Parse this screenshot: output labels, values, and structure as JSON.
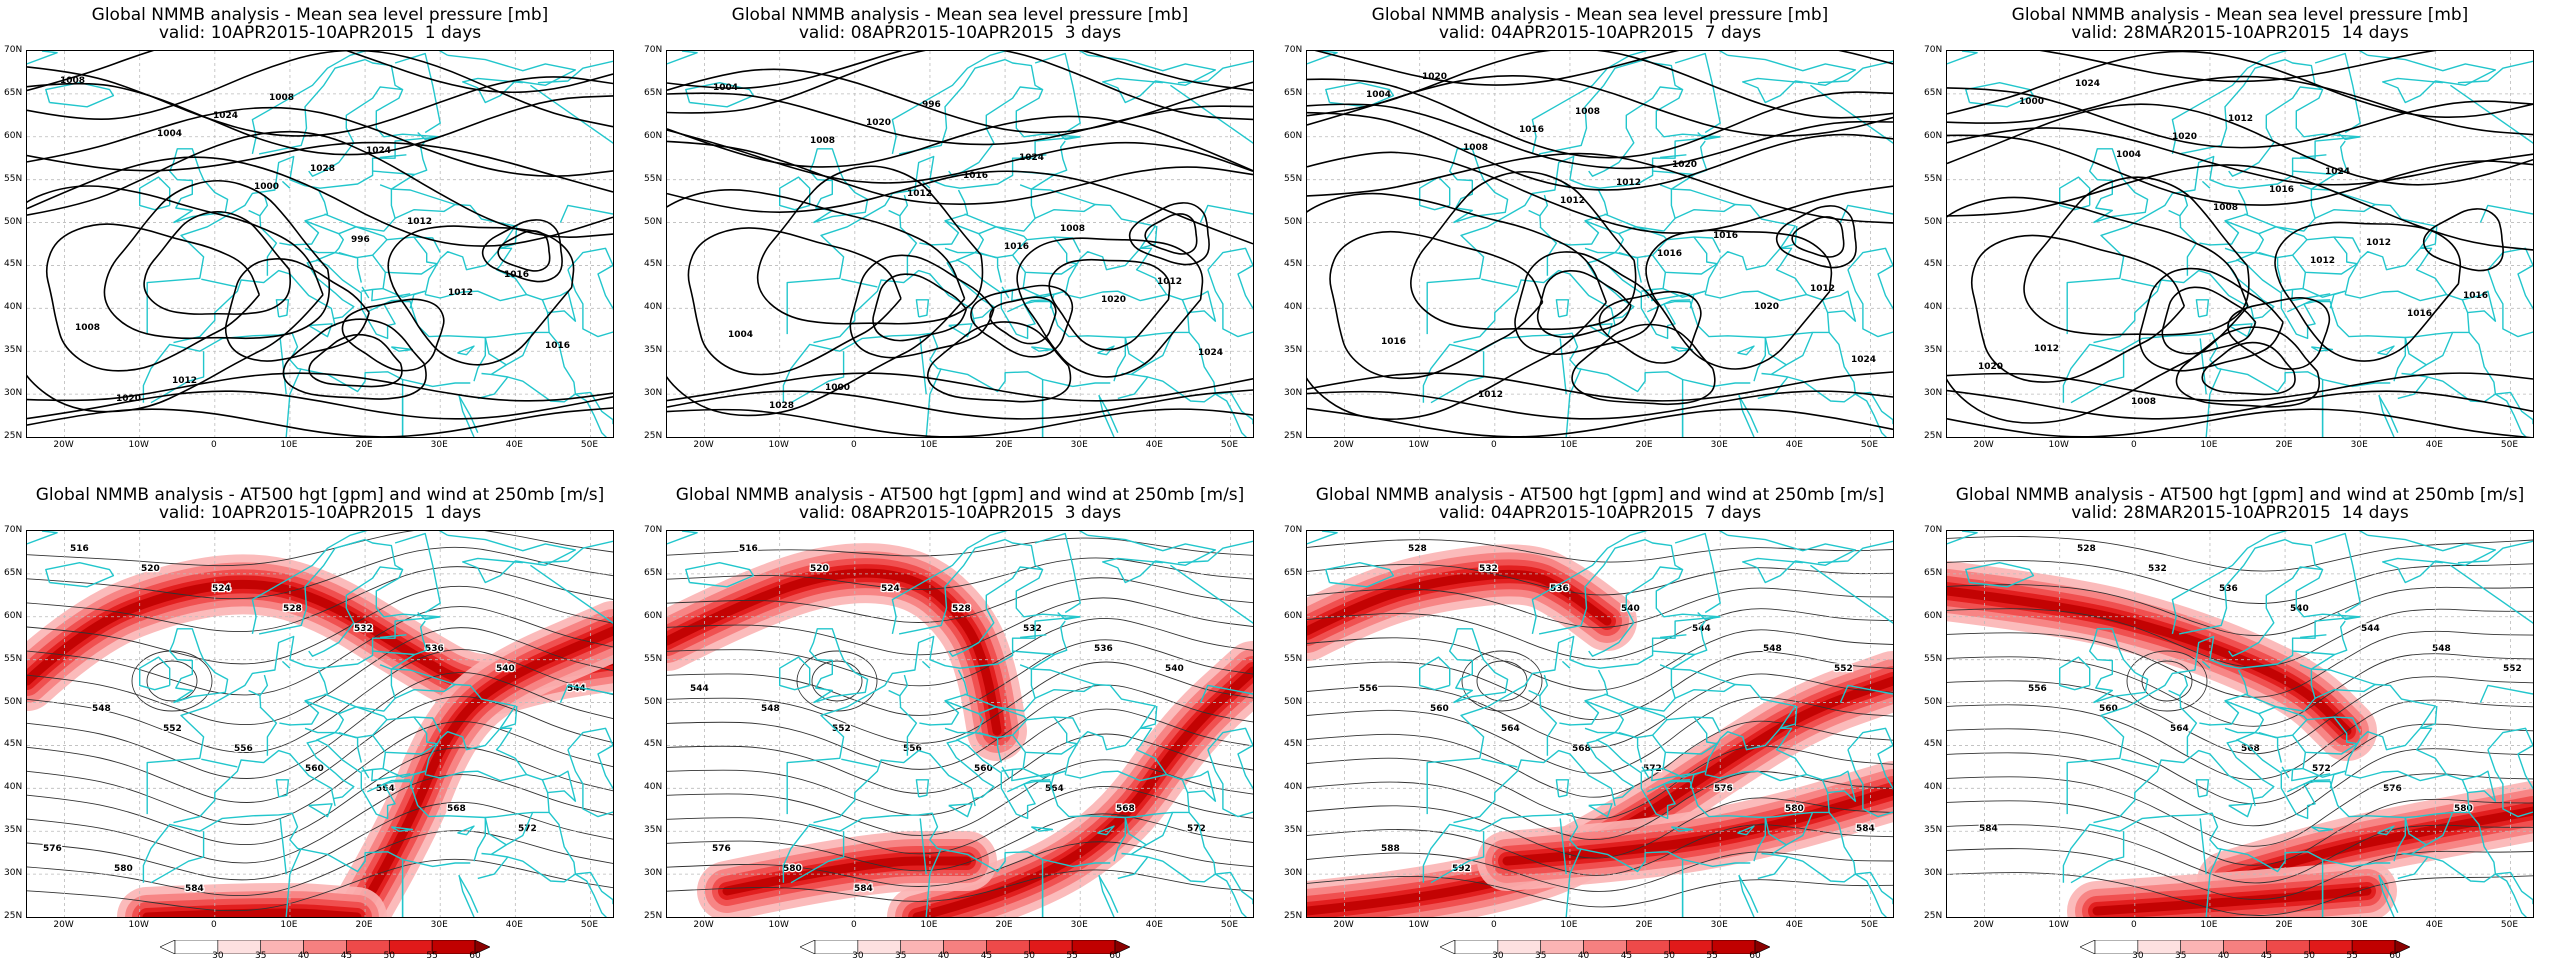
{
  "panels": [
    {
      "title1": "Global NMMB analysis - Mean sea level pressure [mb]",
      "title2": "valid: 10APR2015-10APR2015  1 days",
      "type": "mslp",
      "contour_labels": [
        "1008",
        "1004",
        "1000",
        "996",
        "1012",
        "1016",
        "1020",
        "1024",
        "1028",
        "1012",
        "1016",
        "1008",
        "1012",
        "1008",
        "1024"
      ]
    },
    {
      "title1": "Global NMMB analysis - Mean sea level pressure [mb]",
      "title2": "valid: 08APR2015-10APR2015  3 days",
      "type": "mslp",
      "contour_labels": [
        "1004",
        "1008",
        "1012",
        "1016",
        "1020",
        "1024",
        "1028",
        "1020",
        "1016",
        "1008",
        "1012",
        "1004",
        "1000",
        "996",
        "1024"
      ]
    },
    {
      "title1": "Global NMMB analysis - Mean sea level pressure [mb]",
      "title2": "valid: 04APR2015-10APR2015  7 days",
      "type": "mslp",
      "contour_labels": [
        "1004",
        "1008",
        "1012",
        "1016",
        "1020",
        "1024",
        "1020",
        "1016",
        "1012",
        "1016",
        "1012",
        "1016",
        "1012",
        "1008",
        "1020"
      ]
    },
    {
      "title1": "Global NMMB analysis - Mean sea level pressure [mb]",
      "title2": "valid: 28MAR2015-10APR2015  14 days",
      "type": "mslp",
      "contour_labels": [
        "1000",
        "1004",
        "1008",
        "1012",
        "1016",
        "1020",
        "1024",
        "1020",
        "1016",
        "1012",
        "1016",
        "1012",
        "1008",
        "1012",
        "1024"
      ]
    },
    {
      "title1": "Global NMMB analysis - AT500 hgt [gpm] and wind at 250mb [m/s]",
      "title2": "valid: 10APR2015-10APR2015  1 days",
      "type": "z500",
      "contour_labels": [
        "516",
        "520",
        "524",
        "528",
        "532",
        "536",
        "540",
        "544",
        "548",
        "552",
        "556",
        "560",
        "564",
        "568",
        "572",
        "576",
        "580",
        "584"
      ]
    },
    {
      "title1": "Global NMMB analysis - AT500 hgt [gpm] and wind at 250mb [m/s]",
      "title2": "valid: 08APR2015-10APR2015  3 days",
      "type": "z500",
      "contour_labels": [
        "516",
        "520",
        "524",
        "528",
        "532",
        "536",
        "540",
        "544",
        "548",
        "552",
        "556",
        "560",
        "564",
        "568",
        "572",
        "576",
        "580",
        "584"
      ]
    },
    {
      "title1": "Global NMMB analysis - AT500 hgt [gpm] and wind at 250mb [m/s]",
      "title2": "valid: 04APR2015-10APR2015  7 days",
      "type": "z500",
      "contour_labels": [
        "528",
        "532",
        "536",
        "540",
        "544",
        "548",
        "552",
        "556",
        "560",
        "564",
        "568",
        "572",
        "576",
        "580",
        "584",
        "588",
        "592"
      ]
    },
    {
      "title1": "Global NMMB analysis - AT500 hgt [gpm] and wind at 250mb [m/s]",
      "title2": "valid: 28MAR2015-10APR2015  14 days",
      "type": "z500",
      "contour_labels": [
        "528",
        "532",
        "536",
        "540",
        "544",
        "548",
        "552",
        "556",
        "560",
        "564",
        "568",
        "572",
        "576",
        "580",
        "584"
      ]
    }
  ],
  "axes": {
    "lat_labels": [
      "70N",
      "65N",
      "60N",
      "55N",
      "50N",
      "45N",
      "40N",
      "35N",
      "30N",
      "25N"
    ],
    "lon_labels": [
      "20W",
      "10W",
      "0",
      "10E",
      "20E",
      "30E",
      "40E",
      "50E"
    ]
  },
  "colorbar": {
    "labels": [
      "30",
      "35",
      "40",
      "45",
      "50",
      "55",
      "60"
    ],
    "colors": [
      "#ffffff",
      "#fde0e0",
      "#fbb4b4",
      "#f68080",
      "#ee4a4a",
      "#e01a1a",
      "#c00000",
      "#8a0000"
    ]
  },
  "colors": {
    "coast": "#22c6cc",
    "contour": "#000000",
    "jet_light": "#fbc9c9",
    "jet_mid": "#f07070",
    "jet_dark": "#d41010"
  }
}
